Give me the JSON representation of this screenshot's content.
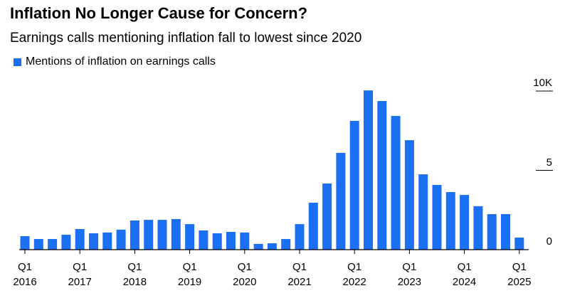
{
  "chart_data": {
    "type": "bar",
    "title": "Inflation No Longer Cause for Concern?",
    "subtitle": "Earnings calls mentioning inflation fall to lowest since 2020",
    "series": [
      {
        "name": "Mentions of inflation on earnings calls",
        "color": "#1b6ff2",
        "values": [
          0.85,
          0.67,
          0.67,
          0.94,
          1.3,
          1.03,
          1.08,
          1.26,
          1.84,
          1.88,
          1.88,
          1.93,
          1.61,
          1.21,
          1.03,
          1.12,
          1.08,
          0.36,
          0.4,
          0.67,
          1.61,
          2.96,
          4.17,
          6.1,
          8.12,
          10.04,
          9.37,
          8.43,
          6.9,
          4.75,
          4.08,
          3.63,
          3.45,
          2.74,
          2.24,
          2.24,
          0.76
        ]
      }
    ],
    "categories": [
      "Q1\n2016",
      null,
      null,
      null,
      "Q1\n2017",
      null,
      null,
      null,
      "Q1\n2018",
      null,
      null,
      null,
      "Q1\n2019",
      null,
      null,
      null,
      "Q1\n2020",
      null,
      null,
      null,
      "Q1\n2021",
      null,
      null,
      null,
      "Q1\n2022",
      null,
      null,
      null,
      "Q1\n2023",
      null,
      null,
      null,
      "Q1\n2024",
      null,
      null,
      null,
      "Q1\n2025"
    ],
    "ylim": [
      0,
      10.3
    ],
    "yticks": [
      0,
      5,
      {
        "value": 10,
        "label": "10K"
      }
    ]
  }
}
